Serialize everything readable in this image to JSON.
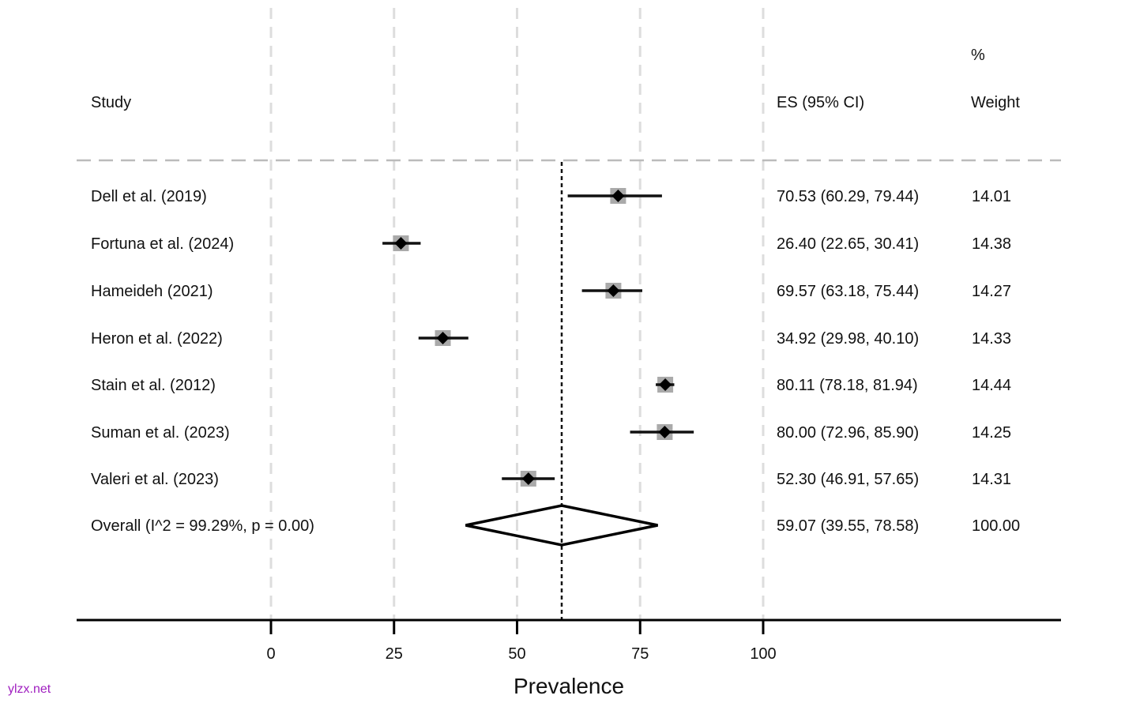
{
  "chart_data": {
    "type": "forest",
    "xlabel": "Prevalence",
    "xlim": [
      0,
      100
    ],
    "xticks": [
      0,
      25,
      50,
      75,
      100
    ],
    "headers": {
      "study": "Study",
      "es": "ES (95% CI)",
      "weight_top": "%",
      "weight": "Weight"
    },
    "studies": [
      {
        "name": "Dell et al. (2019)",
        "es": 70.53,
        "lo": 60.29,
        "hi": 79.44,
        "es_text": "70.53 (60.29, 79.44)",
        "weight": "14.01"
      },
      {
        "name": "Fortuna et al. (2024)",
        "es": 26.4,
        "lo": 22.65,
        "hi": 30.41,
        "es_text": "26.40 (22.65, 30.41)",
        "weight": "14.38"
      },
      {
        "name": "Hameideh (2021)",
        "es": 69.57,
        "lo": 63.18,
        "hi": 75.44,
        "es_text": "69.57 (63.18, 75.44)",
        "weight": "14.27"
      },
      {
        "name": "Heron et al. (2022)",
        "es": 34.92,
        "lo": 29.98,
        "hi": 40.1,
        "es_text": "34.92 (29.98, 40.10)",
        "weight": "14.33"
      },
      {
        "name": "Stain et al. (2012)",
        "es": 80.11,
        "lo": 78.18,
        "hi": 81.94,
        "es_text": "80.11 (78.18, 81.94)",
        "weight": "14.44"
      },
      {
        "name": "Suman et al. (2023)",
        "es": 80.0,
        "lo": 72.96,
        "hi": 85.9,
        "es_text": "80.00 (72.96, 85.90)",
        "weight": "14.25"
      },
      {
        "name": "Valeri et al. (2023)",
        "es": 52.3,
        "lo": 46.91,
        "hi": 57.65,
        "es_text": "52.30 (46.91, 57.65)",
        "weight": "14.31"
      }
    ],
    "overall": {
      "name": "Overall  (I^2 = 99.29%, p = 0.00)",
      "es": 59.07,
      "lo": 39.55,
      "hi": 78.58,
      "es_text": "59.07 (39.55, 78.58)",
      "weight": "100.00"
    }
  },
  "watermark": "ylzx.net"
}
